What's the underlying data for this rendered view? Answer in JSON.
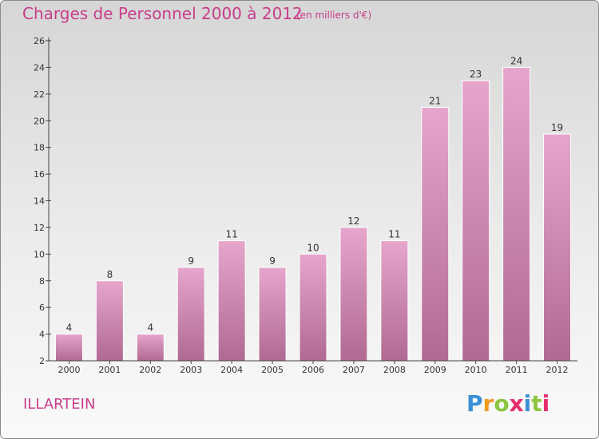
{
  "header": {
    "title": "Charges de Personnel 2000 à 2012",
    "subtitle": "(en milliers d'€)"
  },
  "footer": {
    "commune": "ILLARTEIN",
    "logo": [
      "P",
      "r",
      "o",
      "x",
      "i",
      "t",
      "i"
    ]
  },
  "colors": {
    "title": "#c83d8a",
    "bar_top": "#e6a6cc",
    "bar_bottom": "#b06a92",
    "logo": [
      "#3a8fd6",
      "#f19a1e",
      "#8cc63f",
      "#e52e6d",
      "#3a8fd6",
      "#8cc63f",
      "#e52e6d"
    ]
  },
  "chart_data": {
    "type": "bar",
    "categories": [
      "2000",
      "2001",
      "2002",
      "2003",
      "2004",
      "2005",
      "2006",
      "2007",
      "2008",
      "2009",
      "2010",
      "2011",
      "2012"
    ],
    "values": [
      4,
      8,
      4,
      9,
      11,
      9,
      10,
      12,
      11,
      21,
      23,
      24,
      19
    ],
    "title": "Charges de Personnel 2000 à 2012",
    "ylim": [
      2,
      26
    ],
    "yticks": [
      2,
      4,
      6,
      8,
      10,
      12,
      14,
      16,
      18,
      20,
      22,
      24,
      26
    ],
    "grid": false,
    "legend": "none"
  }
}
